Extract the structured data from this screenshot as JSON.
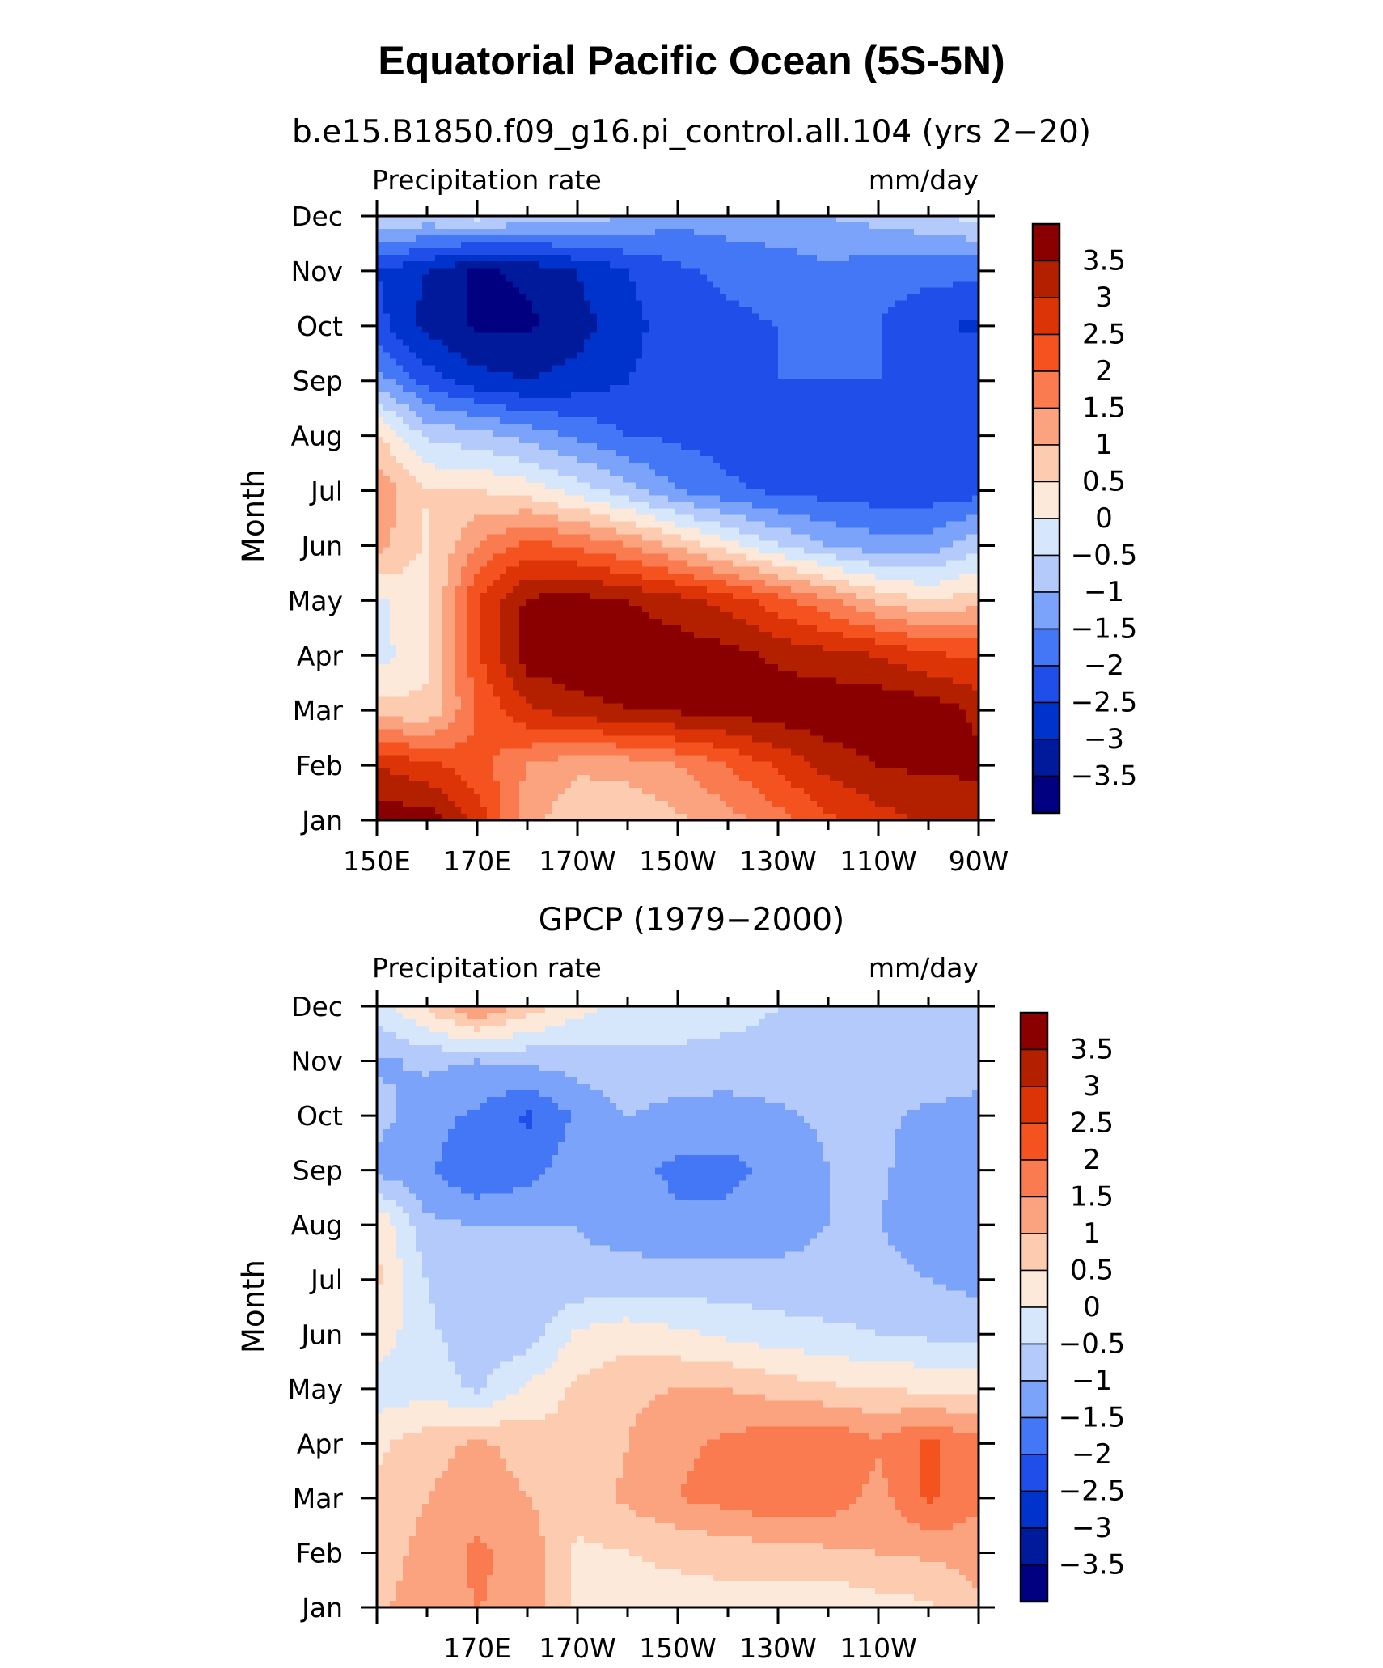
{
  "title": "Equatorial Pacific Ocean (5S-5N)",
  "colors": [
    "#000080",
    "#001a9c",
    "#0033cc",
    "#1f4fe8",
    "#4477f5",
    "#7ca3fa",
    "#b3cafa",
    "#d6e6fb",
    "#fde9d9",
    "#fccbb0",
    "#fba27f",
    "#f97b4f",
    "#f4521f",
    "#dd3407",
    "#b32000",
    "#8a0000"
  ],
  "chart_data": [
    {
      "type": "heatmap",
      "subtitle": "b.e15.B1850.f09_g16.pi_control.all.104 (yrs 2−20)",
      "left_label": "Precipitation rate",
      "right_label": "mm/day",
      "ylabel": "Month",
      "months": [
        "Jan",
        "Feb",
        "Mar",
        "Apr",
        "May",
        "Jun",
        "Jul",
        "Aug",
        "Sep",
        "Oct",
        "Nov",
        "Dec"
      ],
      "x": [
        150,
        160,
        170,
        180,
        190,
        200,
        210,
        220,
        230,
        240,
        250,
        260,
        270
      ],
      "x_ticks": [
        {
          "v": 150,
          "label": "150E"
        },
        {
          "v": 170,
          "label": "170E"
        },
        {
          "v": 190,
          "label": "170W"
        },
        {
          "v": 210,
          "label": "150W"
        },
        {
          "v": 230,
          "label": "130W"
        },
        {
          "v": 250,
          "label": "110W"
        },
        {
          "v": 270,
          "label": "90W"
        }
      ],
      "xlim": [
        150,
        270
      ],
      "levels": [
        -3.5,
        -3,
        -2.5,
        -2,
        -1.5,
        -1,
        -0.5,
        0,
        0.5,
        1,
        1.5,
        2,
        2.5,
        3,
        3.5
      ],
      "colorbar_labels": [
        "3.5",
        "3",
        "2.5",
        "2",
        "1.5",
        "1",
        "0.5",
        "0",
        "−0.5",
        "−1",
        "−1.5",
        "−2",
        "−2.5",
        "−3",
        "−3.5"
      ],
      "values": [
        [
          3.8,
          3.8,
          2.8,
          1.2,
          0.6,
          0.6,
          0.9,
          1.3,
          1.8,
          2.4,
          2.8,
          3.1,
          3.2
        ],
        [
          3.0,
          2.6,
          2.2,
          1.5,
          1.1,
          1.2,
          1.5,
          2.0,
          2.6,
          3.2,
          3.5,
          3.6,
          3.6
        ],
        [
          0.7,
          0.6,
          2.0,
          2.9,
          3.3,
          3.5,
          3.6,
          3.7,
          3.8,
          3.9,
          3.9,
          3.8,
          3.4
        ],
        [
          -0.2,
          0.4,
          2.4,
          3.8,
          3.9,
          3.9,
          3.8,
          3.7,
          3.4,
          3.2,
          3.0,
          2.6,
          2.4
        ],
        [
          -0.1,
          0.3,
          2.5,
          3.6,
          3.7,
          3.5,
          3.2,
          2.8,
          2.2,
          1.6,
          0.9,
          0.5,
          0.8
        ],
        [
          1.2,
          0.4,
          1.5,
          2.2,
          1.9,
          1.5,
          0.9,
          0.2,
          -0.5,
          -1.0,
          -1.3,
          -1.3,
          -0.6
        ],
        [
          1.4,
          0.5,
          0.5,
          0.3,
          -0.2,
          -0.8,
          -1.5,
          -1.9,
          -2.1,
          -2.2,
          -2.3,
          -2.3,
          -2.2
        ],
        [
          0.6,
          -0.6,
          -0.8,
          -1.2,
          -1.6,
          -2.0,
          -2.1,
          -2.2,
          -2.2,
          -2.2,
          -2.2,
          -2.2,
          -2.2
        ],
        [
          -1.2,
          -2.2,
          -2.8,
          -3.0,
          -2.8,
          -2.5,
          -2.2,
          -2.1,
          -2.0,
          -2.0,
          -2.0,
          -2.1,
          -2.1
        ],
        [
          -2.3,
          -3.2,
          -3.6,
          -3.6,
          -3.2,
          -2.7,
          -2.2,
          -2.1,
          -2.0,
          -2.0,
          -2.0,
          -2.4,
          -2.6
        ],
        [
          -2.5,
          -3.0,
          -3.6,
          -3.4,
          -3.0,
          -2.5,
          -2.1,
          -1.9,
          -1.8,
          -1.6,
          -1.8,
          -1.8,
          -1.9
        ],
        [
          -0.4,
          -0.6,
          -0.3,
          -0.6,
          -0.7,
          -1.0,
          -1.3,
          -1.2,
          -1.1,
          -1.0,
          -0.8,
          -0.6,
          -0.3
        ]
      ]
    },
    {
      "type": "heatmap",
      "subtitle": "GPCP (1979−2000)",
      "left_label": "Precipitation rate",
      "right_label": "mm/day",
      "ylabel": "Month",
      "months": [
        "Jan",
        "Feb",
        "Mar",
        "Apr",
        "May",
        "Jun",
        "Jul",
        "Aug",
        "Sep",
        "Oct",
        "Nov",
        "Dec"
      ],
      "x": [
        150,
        160,
        170,
        180,
        190,
        200,
        210,
        220,
        230,
        240,
        250,
        260,
        270
      ],
      "x_ticks": [
        {
          "v": 170,
          "label": "170E"
        },
        {
          "v": 190,
          "label": "170W"
        },
        {
          "v": 210,
          "label": "150W"
        },
        {
          "v": 230,
          "label": "130W"
        },
        {
          "v": 250,
          "label": "110W"
        }
      ],
      "xlim": [
        150,
        270
      ],
      "levels": [
        -3.5,
        -3,
        -2.5,
        -2,
        -1.5,
        -1,
        -0.5,
        0,
        0.5,
        1,
        1.5,
        2,
        2.5,
        3,
        3.5
      ],
      "colorbar_labels": [
        "3.5",
        "3",
        "2.5",
        "2",
        "1.5",
        "1",
        "0.5",
        "0",
        "−0.5",
        "−1",
        "−1.5",
        "−2",
        "−2.5",
        "−3",
        "−3.5"
      ],
      "values": [
        [
          0.9,
          1.3,
          1.5,
          1.4,
          0.4,
          0.3,
          0.3,
          0.3,
          0.2,
          0.1,
          0.3,
          0.4,
          0.9
        ],
        [
          0.7,
          1.2,
          1.6,
          1.3,
          0.4,
          0.5,
          0.6,
          0.7,
          0.8,
          0.9,
          1.0,
          1.1,
          1.2
        ],
        [
          0.6,
          1.0,
          1.3,
          1.0,
          0.7,
          1.1,
          1.5,
          1.7,
          1.9,
          1.8,
          1.3,
          2.1,
          1.6
        ],
        [
          0.4,
          0.8,
          1.1,
          0.8,
          0.6,
          1.0,
          1.4,
          1.6,
          1.9,
          2.0,
          1.6,
          2.1,
          1.7
        ],
        [
          -0.3,
          -0.2,
          -0.6,
          0.1,
          0.6,
          0.9,
          1.0,
          1.0,
          0.8,
          0.6,
          0.5,
          0.4,
          0.3
        ],
        [
          0.3,
          -0.4,
          -0.8,
          -0.8,
          0.1,
          0.3,
          0.1,
          -0.1,
          -0.3,
          -0.4,
          -0.5,
          -0.6,
          -0.6
        ],
        [
          0.6,
          -0.5,
          -0.9,
          -0.8,
          -0.9,
          -0.8,
          -0.8,
          -0.8,
          -0.8,
          -0.8,
          -0.8,
          -1.0,
          -1.2
        ],
        [
          0.5,
          -0.9,
          -1.0,
          -1.0,
          -1.0,
          -1.2,
          -1.4,
          -1.4,
          -1.3,
          -1.0,
          -1.0,
          -1.3,
          -1.2
        ],
        [
          -1.2,
          -1.4,
          -2.0,
          -1.7,
          -1.2,
          -1.4,
          -1.6,
          -1.6,
          -1.4,
          -1.0,
          -0.9,
          -1.3,
          -1.2
        ],
        [
          -0.8,
          -1.3,
          -1.6,
          -2.1,
          -1.4,
          -1.0,
          -1.2,
          -1.3,
          -1.1,
          -0.9,
          -0.9,
          -1.1,
          -1.3
        ],
        [
          -1.1,
          -0.9,
          -1.0,
          -0.9,
          -0.8,
          -0.6,
          -0.6,
          -0.6,
          -0.6,
          -0.6,
          -0.6,
          -0.6,
          -0.6
        ],
        [
          -0.2,
          0.6,
          1.6,
          0.8,
          0.2,
          -0.2,
          -0.3,
          -0.4,
          -0.5,
          -0.5,
          -0.5,
          -0.6,
          -0.6
        ]
      ]
    }
  ]
}
